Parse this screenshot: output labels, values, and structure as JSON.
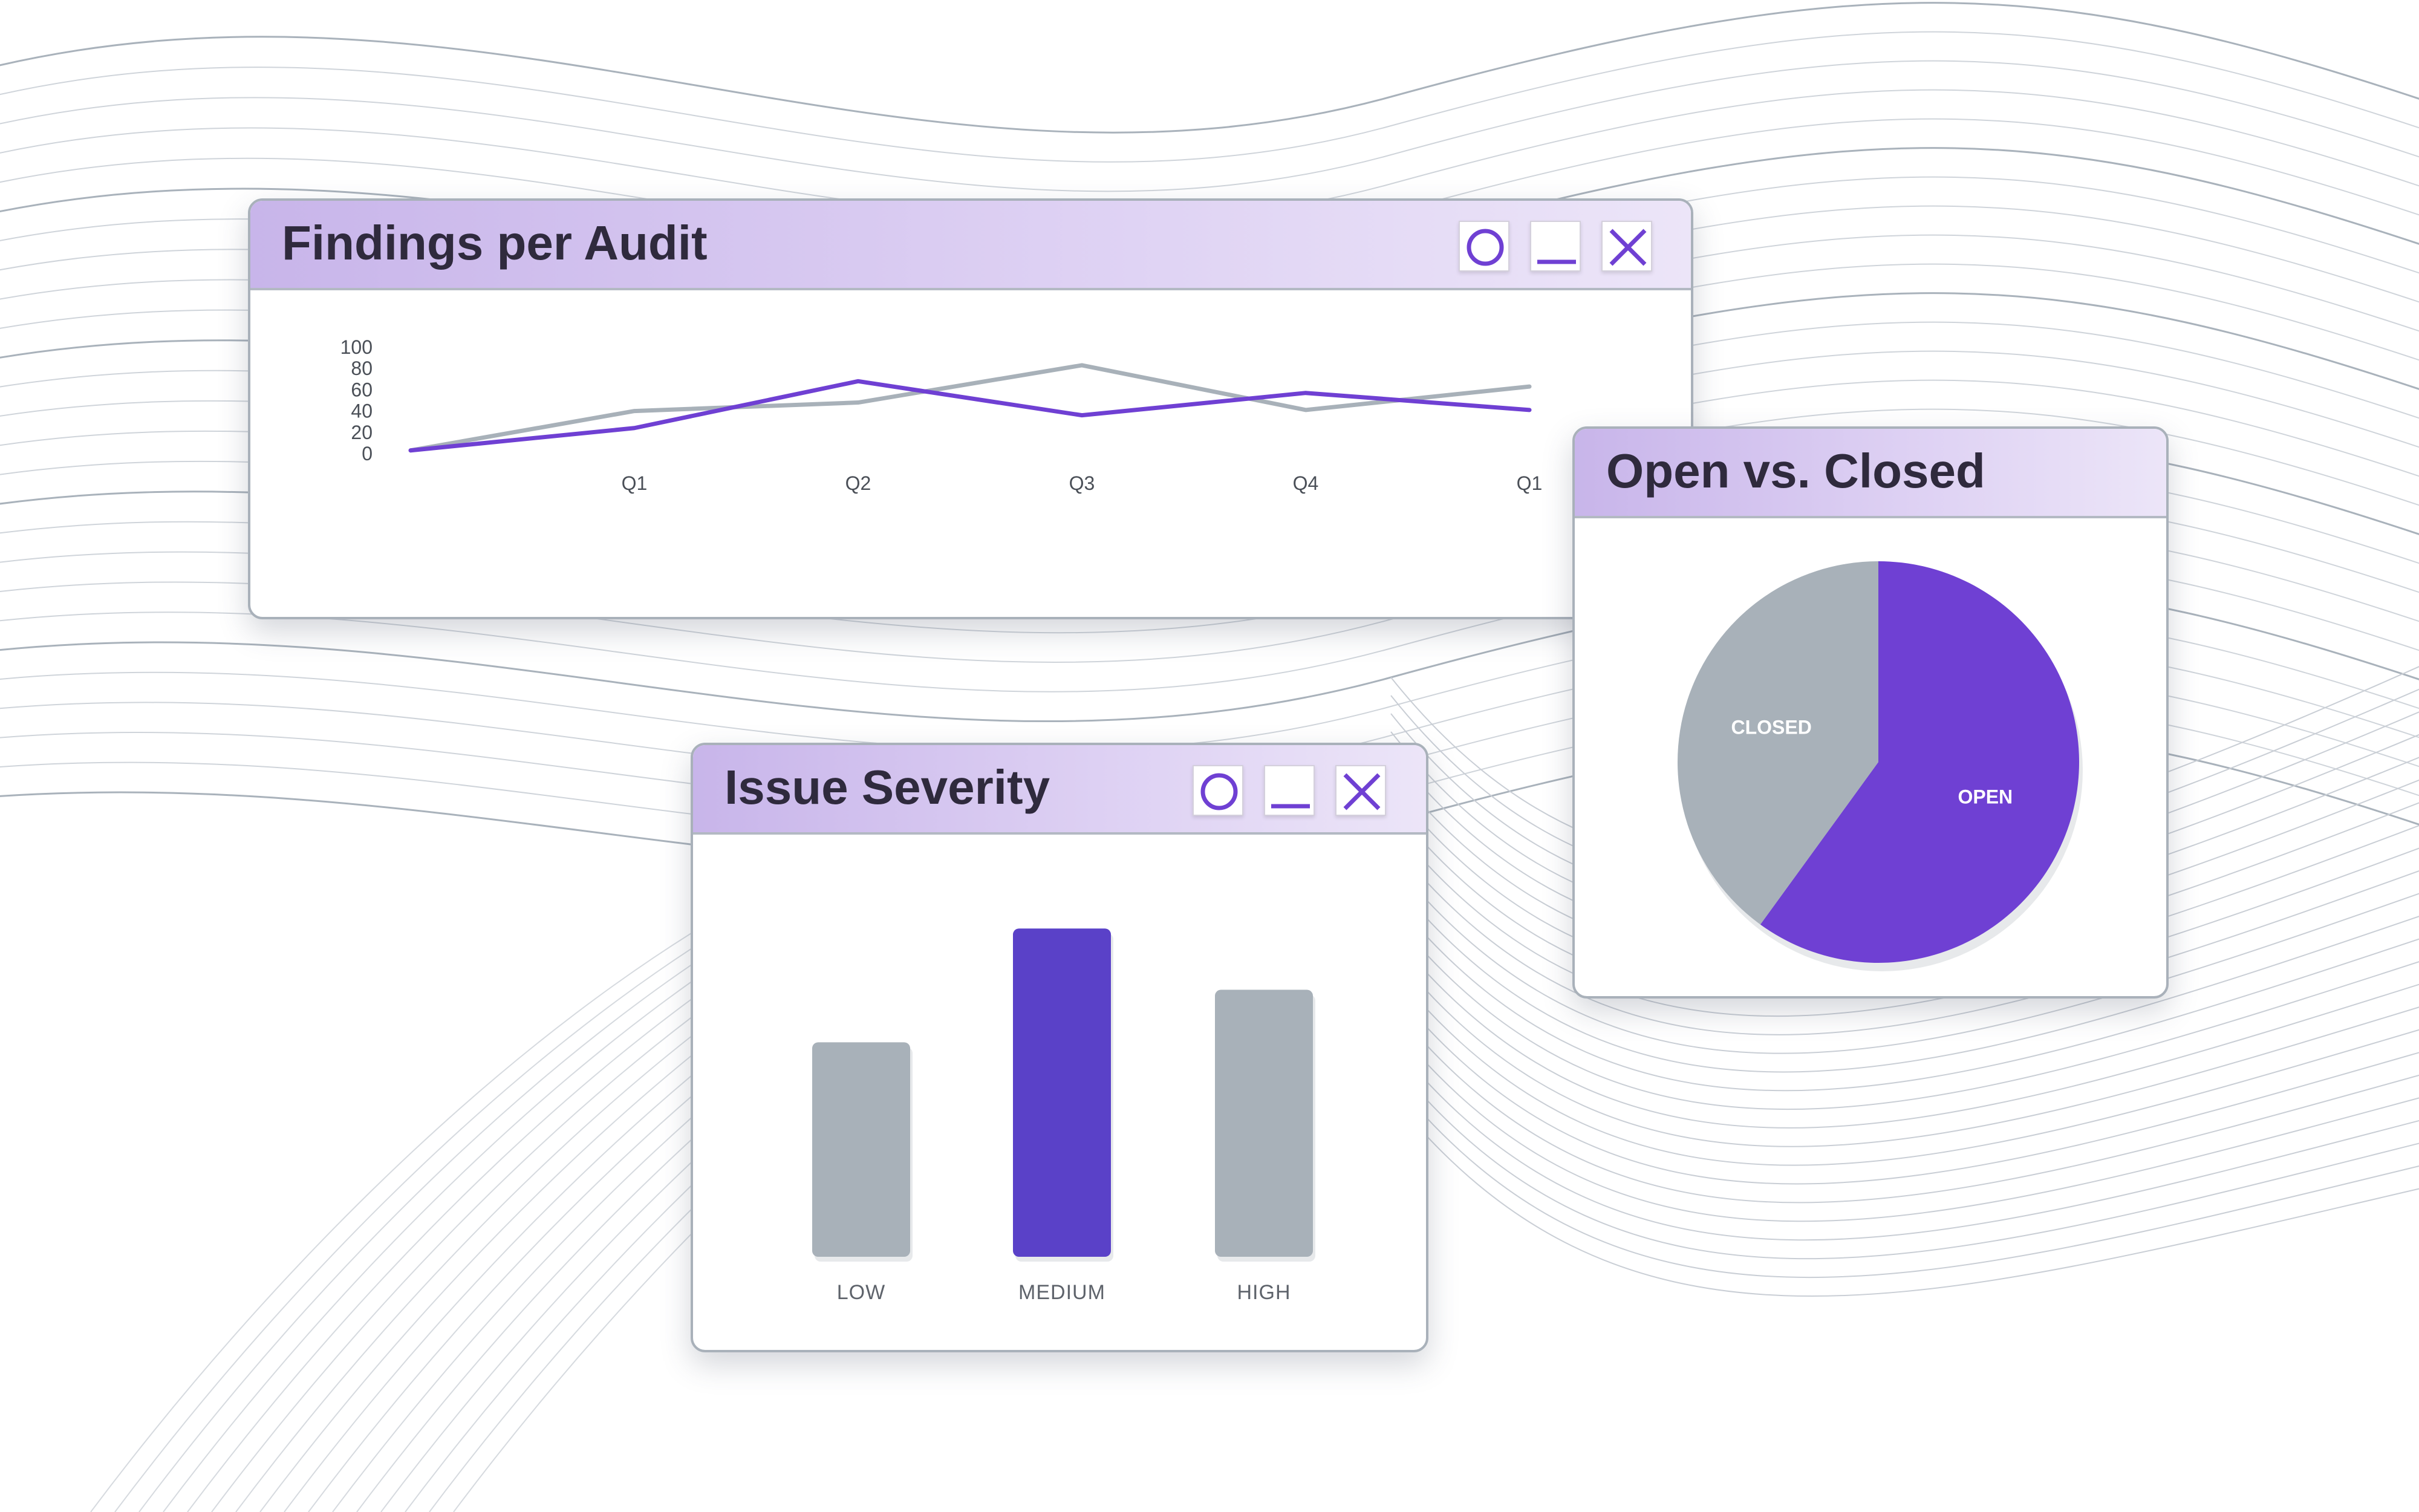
{
  "windows": {
    "findings": {
      "title": "Findings per Audit"
    },
    "severity": {
      "title": "Issue Severity"
    },
    "pie": {
      "title": "Open vs. Closed"
    }
  },
  "controls": {
    "restore_icon": "circle-icon",
    "minimize_icon": "minimize-icon",
    "close_icon": "close-icon"
  },
  "colors": {
    "accent": "#6f40d3",
    "accent_bar": "#5a41c8",
    "neutral": "#a8b1b9",
    "title_bar_start": "#c8b5ea",
    "title_bar_end": "#ece5f8"
  },
  "chart_data": [
    {
      "type": "line",
      "title": "Findings per Audit",
      "categories": [
        "",
        "Q1",
        "Q2",
        "Q3",
        "Q4",
        "Q1"
      ],
      "yticks": [
        0,
        20,
        40,
        60,
        80,
        100
      ],
      "ylim": [
        0,
        100
      ],
      "series": [
        {
          "color": "#a8b1b9",
          "values": [
            3,
            40,
            48,
            83,
            41,
            63
          ]
        },
        {
          "color": "#6f40d3",
          "values": [
            3,
            24,
            68,
            36,
            57,
            41
          ]
        }
      ],
      "grid": false
    },
    {
      "type": "bar",
      "title": "Issue Severity",
      "categories": [
        "LOW",
        "MEDIUM",
        "HIGH"
      ],
      "values": [
        49,
        75,
        61
      ],
      "colors": [
        "#a8b1b9",
        "#5a41c8",
        "#a8b1b9"
      ],
      "ylim": [
        0,
        80
      ]
    },
    {
      "type": "pie",
      "title": "Open vs. Closed",
      "slices": [
        {
          "label": "OPEN",
          "value": 60,
          "color": "#6f40d3"
        },
        {
          "label": "CLOSED",
          "value": 40,
          "color": "#a8b1b9"
        }
      ]
    }
  ]
}
